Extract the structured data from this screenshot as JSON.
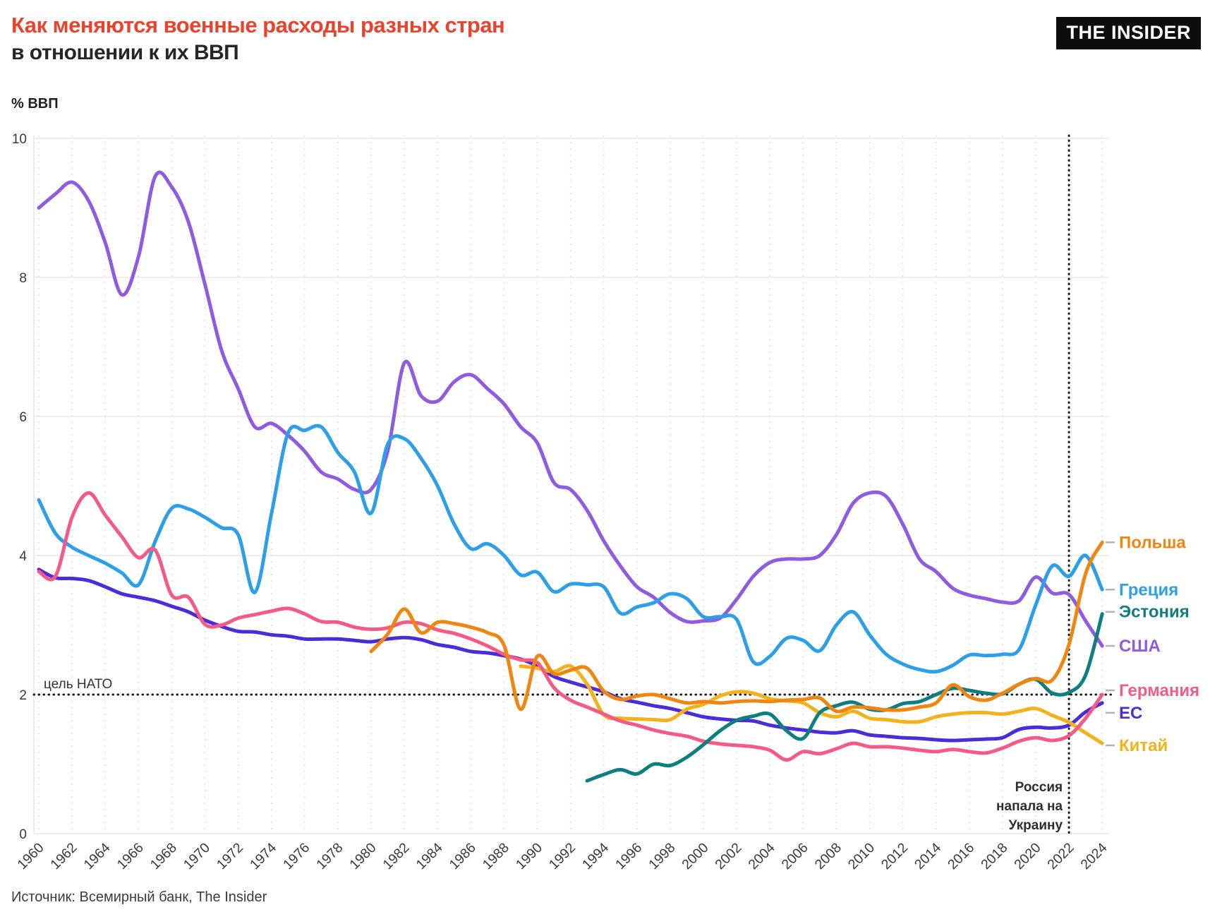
{
  "header": {
    "title_line1": "Как меняются военные расходы разных стран",
    "title_line2": "в отношении к их ВВП",
    "logo": "THE INSIDER",
    "y_axis_unit": "% ВВП"
  },
  "source": "Источник: Всемирный банк, The Insider",
  "annotations": {
    "nato_label": "цель НАТО",
    "nato_value": 2,
    "event_year": 2022,
    "event_lines": [
      "Россия",
      "напала на",
      "Украину"
    ]
  },
  "colors": {
    "title_accent": "#e8432d",
    "text_dark": "#262626",
    "axis_text": "#3a3a3a",
    "gridline": "#e8e8e8",
    "year_gridline": "#e2e2e2",
    "marker_line": "#161616",
    "legend_tick": "#b3b3b3",
    "logo_bg": "#0d0d0d",
    "logo_text": "#ffffff"
  },
  "chart_data": {
    "type": "line",
    "title": "Как меняются военные расходы разных стран в отношении к их ВВП",
    "ylabel": "% ВВП",
    "xlabel": "",
    "ylim": [
      0,
      10
    ],
    "y_ticks": [
      0,
      2,
      4,
      6,
      8,
      10
    ],
    "x_range": [
      1960,
      2024
    ],
    "x_ticks": [
      1960,
      1962,
      1964,
      1966,
      1968,
      1970,
      1972,
      1974,
      1976,
      1978,
      1980,
      1982,
      1984,
      1986,
      1988,
      1990,
      1992,
      1994,
      1996,
      1998,
      2000,
      2002,
      2004,
      2006,
      2008,
      2010,
      2012,
      2014,
      2016,
      2018,
      2020,
      2022,
      2024
    ],
    "grid": true,
    "legend_position": "right",
    "reference_line": {
      "label": "цель НАТО",
      "value": 2
    },
    "event_marker": {
      "year": 2022,
      "label": "Россия напала на Украину"
    },
    "series": [
      {
        "name": "Польша",
        "color": "#f0860f",
        "start_year": 1980,
        "values": [
          2.62,
          2.87,
          3.23,
          2.89,
          3.04,
          3.02,
          2.97,
          2.89,
          2.71,
          1.79,
          2.55,
          2.3,
          2.35,
          2.38,
          2.05,
          1.93,
          1.98,
          2.0,
          1.94,
          1.88,
          1.9,
          1.88,
          1.9,
          1.91,
          1.9,
          1.92,
          1.93,
          1.95,
          1.76,
          1.82,
          1.81,
          1.78,
          1.78,
          1.82,
          1.88,
          2.14,
          1.97,
          1.92,
          2.02,
          2.15,
          2.23,
          2.21,
          2.72,
          3.74,
          4.19
        ]
      },
      {
        "name": "Греция",
        "color": "#2d9fe8",
        "start_year": 1960,
        "values": [
          4.8,
          4.32,
          4.12,
          4.0,
          3.89,
          3.75,
          3.58,
          4.2,
          4.68,
          4.67,
          4.55,
          4.4,
          4.3,
          3.47,
          4.6,
          5.76,
          5.8,
          5.85,
          5.48,
          5.2,
          4.61,
          5.6,
          5.68,
          5.4,
          5.0,
          4.45,
          4.1,
          4.17,
          4.0,
          3.72,
          3.76,
          3.48,
          3.59,
          3.58,
          3.55,
          3.17,
          3.26,
          3.32,
          3.45,
          3.38,
          3.12,
          3.12,
          3.08,
          2.47,
          2.55,
          2.81,
          2.78,
          2.63,
          3.0,
          3.19,
          2.86,
          2.58,
          2.44,
          2.36,
          2.33,
          2.42,
          2.57,
          2.56,
          2.58,
          2.65,
          3.29,
          3.85,
          3.7,
          4.0,
          3.51
        ]
      },
      {
        "name": "Эстония",
        "color": "#107d80",
        "start_year": 1993,
        "values": [
          0.76,
          0.85,
          0.92,
          0.86,
          1.0,
          0.98,
          1.1,
          1.28,
          1.48,
          1.63,
          1.69,
          1.72,
          1.48,
          1.37,
          1.74,
          1.84,
          1.89,
          1.79,
          1.78,
          1.87,
          1.9,
          2.0,
          2.09,
          2.06,
          2.02,
          2.01,
          2.15,
          2.22,
          2.02,
          2.03,
          2.28,
          3.16
        ]
      },
      {
        "name": "США",
        "color": "#8f5be0",
        "start_year": 1960,
        "values": [
          9.0,
          9.2,
          9.37,
          9.1,
          8.5,
          7.75,
          8.3,
          9.45,
          9.3,
          8.8,
          7.9,
          6.95,
          6.4,
          5.85,
          5.9,
          5.73,
          5.5,
          5.2,
          5.1,
          4.95,
          4.95,
          5.5,
          6.77,
          6.3,
          6.22,
          6.5,
          6.6,
          6.4,
          6.18,
          5.85,
          5.62,
          5.05,
          4.95,
          4.65,
          4.21,
          3.85,
          3.55,
          3.4,
          3.18,
          3.05,
          3.06,
          3.1,
          3.37,
          3.7,
          3.9,
          3.95,
          3.95,
          4.0,
          4.3,
          4.75,
          4.9,
          4.85,
          4.45,
          3.95,
          3.77,
          3.53,
          3.43,
          3.38,
          3.33,
          3.35,
          3.69,
          3.46,
          3.44,
          3.06,
          2.7
        ]
      },
      {
        "name": "Германия",
        "color": "#f35b85",
        "start_year": 1960,
        "values": [
          3.77,
          3.7,
          4.55,
          4.9,
          4.58,
          4.27,
          3.97,
          4.08,
          3.43,
          3.4,
          3.01,
          3.0,
          3.1,
          3.15,
          3.2,
          3.24,
          3.16,
          3.05,
          3.04,
          2.97,
          2.94,
          2.96,
          3.04,
          3.02,
          2.93,
          2.88,
          2.8,
          2.7,
          2.58,
          2.5,
          2.46,
          2.1,
          1.92,
          1.82,
          1.72,
          1.62,
          1.56,
          1.49,
          1.44,
          1.4,
          1.33,
          1.29,
          1.27,
          1.25,
          1.2,
          1.06,
          1.18,
          1.15,
          1.22,
          1.3,
          1.25,
          1.25,
          1.23,
          1.2,
          1.18,
          1.21,
          1.18,
          1.16,
          1.23,
          1.33,
          1.38,
          1.34,
          1.41,
          1.66,
          2.0
        ]
      },
      {
        "name": "ЕС",
        "color": "#4a2cd9",
        "start_year": 1960,
        "values": [
          3.8,
          3.68,
          3.67,
          3.64,
          3.55,
          3.45,
          3.4,
          3.35,
          3.27,
          3.19,
          3.07,
          2.98,
          2.91,
          2.9,
          2.86,
          2.84,
          2.8,
          2.8,
          2.8,
          2.78,
          2.76,
          2.8,
          2.82,
          2.79,
          2.72,
          2.68,
          2.62,
          2.6,
          2.56,
          2.51,
          2.41,
          2.26,
          2.18,
          2.11,
          2.04,
          1.94,
          1.89,
          1.84,
          1.8,
          1.74,
          1.68,
          1.65,
          1.63,
          1.62,
          1.56,
          1.52,
          1.49,
          1.46,
          1.45,
          1.48,
          1.42,
          1.4,
          1.38,
          1.37,
          1.35,
          1.34,
          1.35,
          1.36,
          1.38,
          1.5,
          1.53,
          1.52,
          1.56,
          1.75,
          1.88
        ]
      },
      {
        "name": "Китай",
        "color": "#f3b21c",
        "start_year": 1989,
        "values": [
          2.41,
          2.38,
          2.33,
          2.41,
          2.15,
          1.71,
          1.66,
          1.65,
          1.64,
          1.64,
          1.79,
          1.86,
          1.98,
          2.04,
          2.02,
          1.94,
          1.91,
          1.88,
          1.74,
          1.68,
          1.76,
          1.66,
          1.64,
          1.61,
          1.61,
          1.68,
          1.72,
          1.74,
          1.74,
          1.72,
          1.76,
          1.8,
          1.7,
          1.6,
          1.45,
          1.3
        ]
      }
    ]
  }
}
